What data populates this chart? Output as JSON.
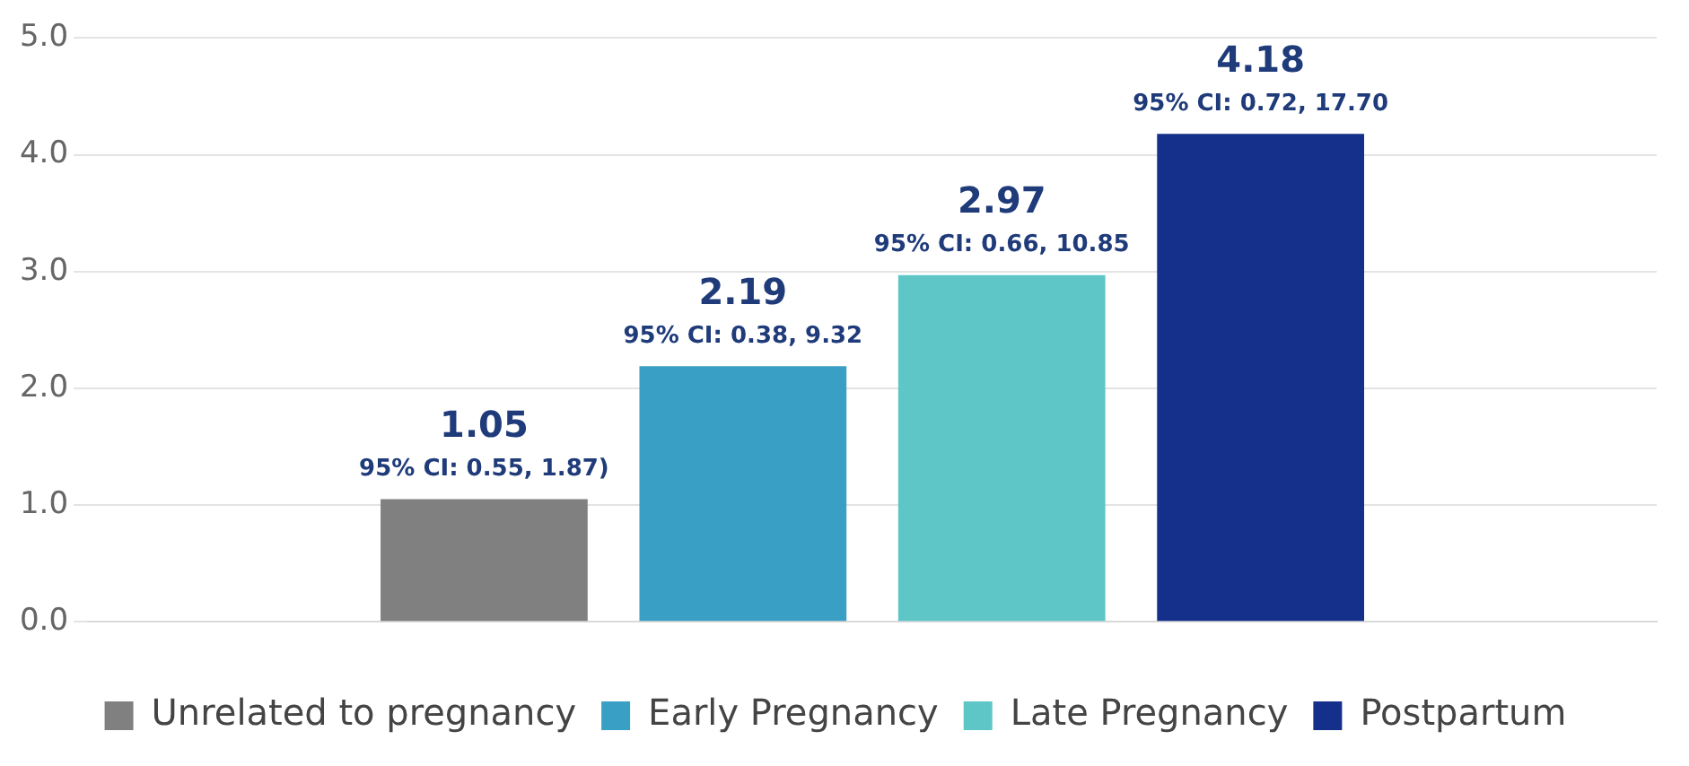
{
  "chart_data": {
    "type": "bar",
    "categories": [
      null
    ],
    "series": [
      {
        "name": "Unrelated to pregnancy",
        "color": "#808080",
        "values": [
          1.05
        ]
      },
      {
        "name": "Early Pregnancy",
        "color": "#3a9fc4",
        "values": [
          2.19
        ]
      },
      {
        "name": "Late Pregnancy",
        "color": "#5ec6c6",
        "values": [
          2.97
        ]
      },
      {
        "name": "Postpartum",
        "color": "#14308a",
        "values": [
          4.18
        ]
      }
    ],
    "ylim": [
      0,
      5
    ],
    "yticks": [
      {
        "value": 0,
        "label": "0.0"
      },
      {
        "value": 1,
        "label": "1.0"
      },
      {
        "value": 2,
        "label": "2.0"
      },
      {
        "value": 3,
        "label": "3.0"
      },
      {
        "value": 4,
        "label": "4.0"
      },
      {
        "value": 5,
        "label": "5.0"
      }
    ],
    "grid": "y",
    "legend": "bottom",
    "data_labels": true,
    "annotations": [
      "95% CI: 0.55, 1.87)",
      "95% CI: 0.38, 9.32",
      "95% CI: 0.66, 10.85",
      "95% CI: 0.72, 17.70"
    ]
  }
}
